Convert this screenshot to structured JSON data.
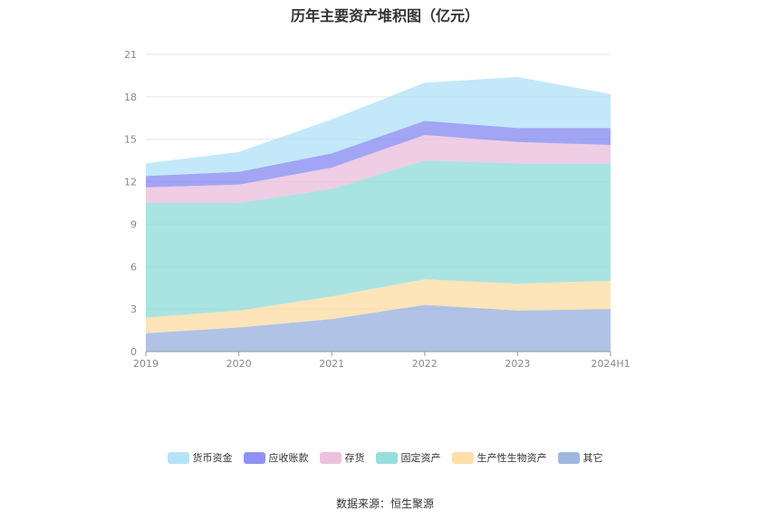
{
  "chart_data": {
    "type": "area",
    "stacked": true,
    "title": "历年主要资产堆积图（亿元）",
    "categories": [
      "2019",
      "2020",
      "2021",
      "2022",
      "2023",
      "2024H1"
    ],
    "ylim": [
      0,
      21
    ],
    "yticks": [
      "0",
      "3",
      "6",
      "9",
      "12",
      "15",
      "18",
      "21"
    ],
    "grid": true,
    "legend_position": "bottom",
    "series": [
      {
        "name": "其它",
        "color": "#8eaadb",
        "values": [
          1.3,
          1.7,
          2.3,
          3.3,
          2.9,
          3.0
        ]
      },
      {
        "name": "生产性生物资产",
        "color": "#fdd99b",
        "values": [
          1.1,
          1.2,
          1.6,
          1.8,
          1.9,
          2.0
        ]
      },
      {
        "name": "固定资产",
        "color": "#84d8d6",
        "values": [
          8.1,
          7.6,
          7.6,
          8.4,
          8.5,
          8.3
        ]
      },
      {
        "name": "存货",
        "color": "#e8b8d8",
        "values": [
          1.1,
          1.3,
          1.5,
          1.8,
          1.5,
          1.3
        ]
      },
      {
        "name": "应收账款",
        "color": "#7b7ff0",
        "values": [
          0.8,
          0.9,
          1.0,
          1.0,
          1.0,
          1.2
        ]
      },
      {
        "name": "货币资金",
        "color": "#a9def6",
        "values": [
          0.9,
          1.4,
          2.4,
          2.7,
          3.6,
          2.4
        ]
      }
    ]
  },
  "legend_order": [
    "货币资金",
    "应收账款",
    "存货",
    "固定资产",
    "生产性生物资产",
    "其它"
  ],
  "source": "数据来源：恒生聚源"
}
